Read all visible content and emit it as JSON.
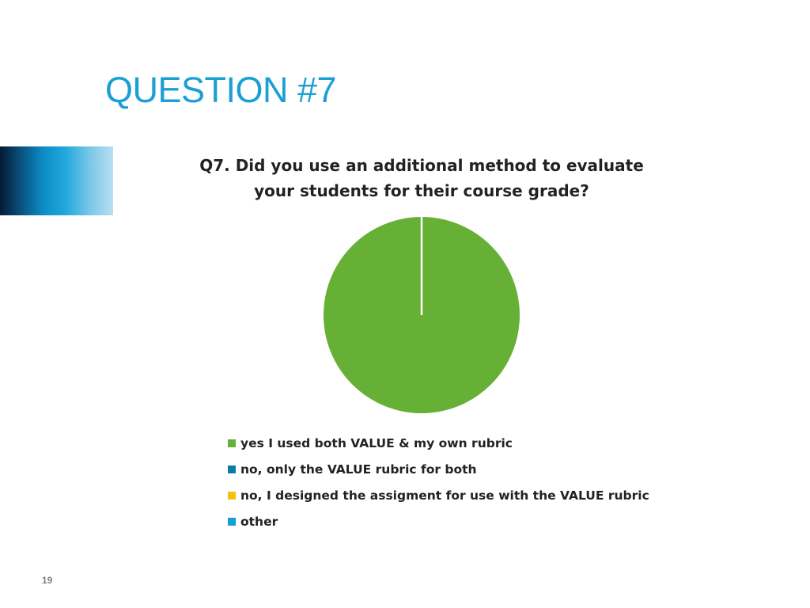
{
  "slide": {
    "title": "QUESTION #7",
    "page_number": "19"
  },
  "chart_data": {
    "type": "pie",
    "title_lines": [
      "Q7. Did you use an additional method to evaluate",
      "your students for their course grade?"
    ],
    "categories": [
      "yes I used both VALUE & my own rubric",
      "no, only the VALUE rubric for both",
      "no, I designed the assigment for use with the VALUE rubric",
      "other"
    ],
    "values": [
      100,
      0,
      0,
      0
    ],
    "colors": [
      "#67b036",
      "#0f7da3",
      "#f2c20d",
      "#149fd6"
    ],
    "legend_position": "bottom"
  }
}
